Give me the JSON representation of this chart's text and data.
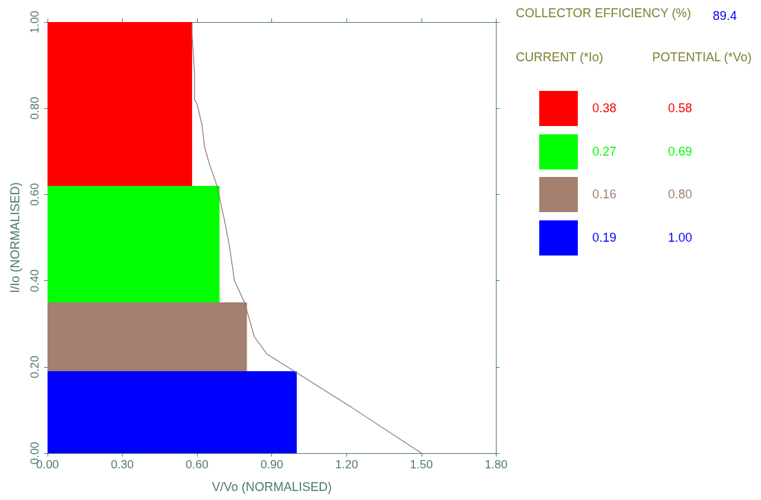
{
  "chart_data": [
    {
      "type": "area",
      "stacked": true,
      "xlabel": "V/Vo (NORMALISED)",
      "ylabel": "I/Io (NORMALISED)",
      "xlim": [
        0,
        1.8
      ],
      "xticks": [
        {
          "value": 0,
          "label": "0.00"
        },
        {
          "value": 0.3,
          "label": "0.30"
        },
        {
          "value": 0.6,
          "label": "0.60"
        },
        {
          "value": 0.9,
          "label": "0.90"
        },
        {
          "value": 1.2,
          "label": "1.20"
        },
        {
          "value": 1.5,
          "label": "1.50"
        },
        {
          "value": 1.8,
          "label": "1.80"
        }
      ],
      "ylim": [
        0,
        1
      ],
      "yticks": [
        {
          "value": 0,
          "label": "0.00"
        },
        {
          "value": 0.2,
          "label": "0.20"
        },
        {
          "value": 0.4,
          "label": "0.40"
        },
        {
          "value": 0.6,
          "label": "0.60"
        },
        {
          "value": 0.8,
          "label": "0.80"
        },
        {
          "value": 1,
          "label": "1.00"
        }
      ],
      "series": [
        {
          "color": "#0000ff",
          "x": [
            0,
            1.0
          ],
          "values": [
            0.19,
            0.19
          ]
        },
        {
          "color": "#a38070",
          "x": [
            0,
            0.8
          ],
          "values": [
            0.16,
            0.16
          ]
        },
        {
          "color": "#00ff00",
          "x": [
            0,
            0.69
          ],
          "values": [
            0.27,
            0.27
          ]
        },
        {
          "color": "#ff0000",
          "x": [
            0,
            0.58
          ],
          "values": [
            0.38,
            0.38
          ]
        },
        {
          "type": "line",
          "color": "#8a7868",
          "x": [
            0.58,
            0.58,
            0.59,
            0.59,
            0.6,
            0.62,
            0.63,
            0.65,
            0.68,
            0.71,
            0.73,
            0.75,
            0.79,
            0.83,
            0.88,
            0.99,
            1.21,
            1.5
          ],
          "values": [
            1.0,
            0.97,
            0.88,
            0.82,
            0.81,
            0.76,
            0.71,
            0.67,
            0.62,
            0.54,
            0.48,
            0.4,
            0.35,
            0.27,
            0.23,
            0.19,
            0.11,
            0.0
          ]
        }
      ]
    },
    {
      "type": "other",
      "annotations": [
        "COLLECTOR EFFICIENCY (%)",
        "89.4",
        "CURRENT (*Io)",
        "POTENTIAL (*Vo)",
        "0.38",
        "0.58",
        "0.27",
        "0.69",
        "0.16",
        "0.80",
        "0.19",
        "1.00"
      ],
      "colors": [
        "#ff0000",
        "#00ff00",
        "#a38070",
        "#0000ff"
      ]
    }
  ]
}
